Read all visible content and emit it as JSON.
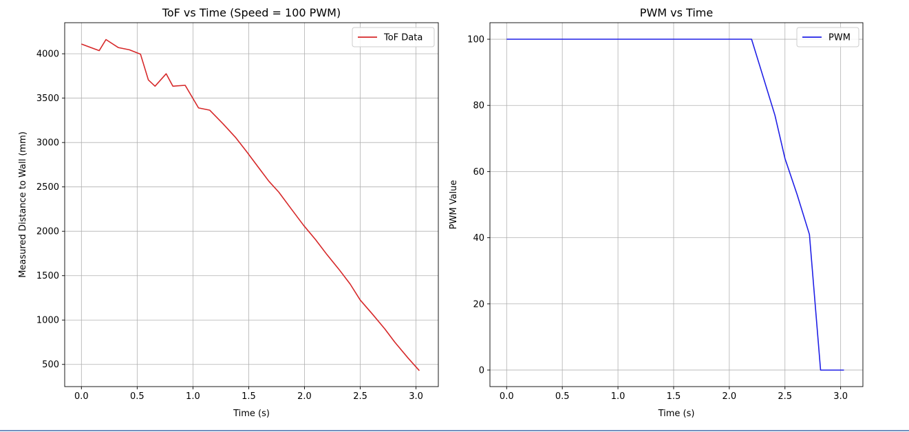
{
  "chart_data": [
    {
      "type": "line",
      "title": "ToF vs Time (Speed = 100 PWM)",
      "xlabel": "Time (s)",
      "ylabel": "Measured Distance to Wall (mm)",
      "xlim": [
        -0.15,
        3.2
      ],
      "ylim": [
        250,
        4350
      ],
      "xticks": [
        0.0,
        0.5,
        1.0,
        1.5,
        2.0,
        2.5,
        3.0
      ],
      "xtick_labels": [
        "0.0",
        "0.5",
        "1.0",
        "1.5",
        "2.0",
        "2.5",
        "3.0"
      ],
      "yticks": [
        500,
        1000,
        1500,
        2000,
        2500,
        3000,
        3500,
        4000
      ],
      "ytick_labels": [
        "500",
        "1000",
        "1500",
        "2000",
        "2500",
        "3000",
        "3500",
        "4000"
      ],
      "grid": true,
      "legend_position": "top-right",
      "series": [
        {
          "name": "ToF Data",
          "color": "#d62728",
          "x": [
            0.0,
            0.16,
            0.22,
            0.33,
            0.43,
            0.53,
            0.6,
            0.66,
            0.76,
            0.82,
            0.93,
            1.05,
            1.15,
            1.27,
            1.38,
            1.48,
            1.56,
            1.68,
            1.77,
            1.88,
            1.99,
            2.1,
            2.2,
            2.31,
            2.41,
            2.5,
            2.61,
            2.72,
            2.81,
            2.93,
            3.03
          ],
          "y": [
            4110,
            4035,
            4160,
            4070,
            4045,
            3995,
            3705,
            3635,
            3775,
            3635,
            3645,
            3390,
            3365,
            3210,
            3060,
            2900,
            2765,
            2565,
            2440,
            2255,
            2070,
            1905,
            1740,
            1570,
            1405,
            1225,
            1065,
            900,
            750,
            570,
            430
          ]
        }
      ]
    },
    {
      "type": "line",
      "title": "PWM vs Time",
      "xlabel": "Time (s)",
      "ylabel": "PWM Value",
      "xlim": [
        -0.15,
        3.2
      ],
      "ylim": [
        -5,
        105
      ],
      "xticks": [
        0.0,
        0.5,
        1.0,
        1.5,
        2.0,
        2.5,
        3.0
      ],
      "xtick_labels": [
        "0.0",
        "0.5",
        "1.0",
        "1.5",
        "2.0",
        "2.5",
        "3.0"
      ],
      "yticks": [
        0,
        20,
        40,
        60,
        80,
        100
      ],
      "ytick_labels": [
        "0",
        "20",
        "40",
        "60",
        "80",
        "100"
      ],
      "grid": true,
      "legend_position": "top-right",
      "series": [
        {
          "name": "PWM",
          "color": "#1f1fe6",
          "x": [
            0.0,
            2.2,
            2.31,
            2.41,
            2.5,
            2.61,
            2.72,
            2.82,
            2.93,
            3.03
          ],
          "y": [
            100,
            100,
            88,
            77,
            64,
            53,
            41,
            0,
            0,
            0
          ]
        }
      ]
    }
  ]
}
